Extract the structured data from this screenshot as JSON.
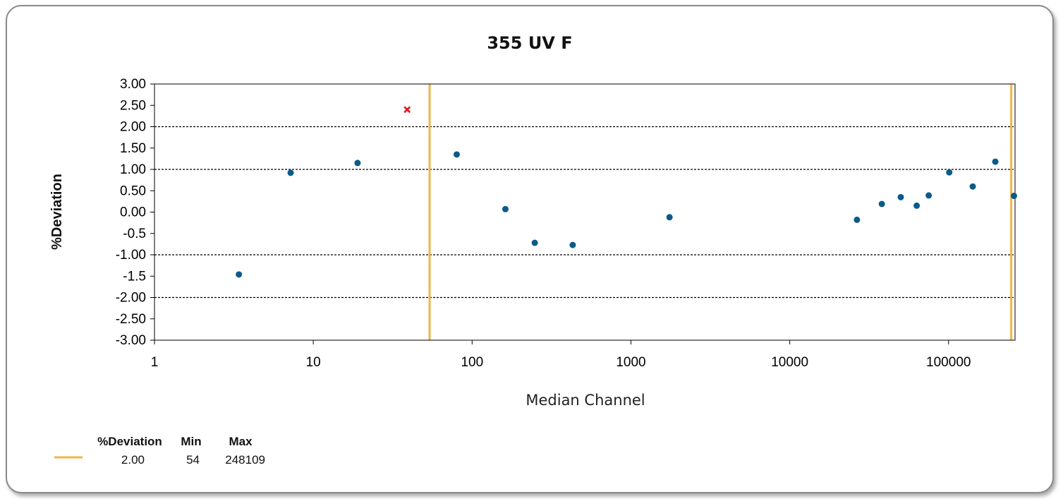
{
  "chart_data": {
    "type": "scatter",
    "title": "355 UV F",
    "xlabel": "Median Channel",
    "ylabel": "%Deviation",
    "x_scale": "log",
    "xlim": [
      1,
      262144
    ],
    "ylim": [
      -3.0,
      3.0
    ],
    "x_ticks": [
      "1",
      "10",
      "100",
      "1000",
      "10000",
      "100000"
    ],
    "y_ticks": [
      "3.00",
      "2.50",
      "2.00",
      "1.50",
      "1.00",
      "0.50",
      "0.00",
      "-0.5",
      "-1.00",
      "-1.5",
      "-2.00",
      "-2.50",
      "-3.00"
    ],
    "dashed_reference_lines": [
      2.0,
      1.0,
      -1.0,
      -2.0
    ],
    "range_lines": {
      "min": 54,
      "max": 248109,
      "color": "#f0b44a"
    },
    "point_color": "#0a5b8a",
    "outlier_color": "#e8141e",
    "points": [
      {
        "x": 3.4,
        "y": -1.46
      },
      {
        "x": 7.2,
        "y": 0.92
      },
      {
        "x": 19,
        "y": 1.15
      },
      {
        "x": 80,
        "y": 1.35
      },
      {
        "x": 162,
        "y": 0.07
      },
      {
        "x": 248,
        "y": -0.72
      },
      {
        "x": 430,
        "y": -0.77
      },
      {
        "x": 1750,
        "y": -0.12
      },
      {
        "x": 26500,
        "y": -0.18
      },
      {
        "x": 38000,
        "y": 0.19
      },
      {
        "x": 50000,
        "y": 0.35
      },
      {
        "x": 63000,
        "y": 0.15
      },
      {
        "x": 75000,
        "y": 0.39
      },
      {
        "x": 101000,
        "y": 0.93
      },
      {
        "x": 142000,
        "y": 0.6
      },
      {
        "x": 197000,
        "y": 1.18
      },
      {
        "x": 258000,
        "y": 0.38
      }
    ],
    "outliers": [
      {
        "x": 39,
        "y": 2.4
      }
    ],
    "legend": {
      "headers": [
        "%Deviation",
        "Min",
        "Max"
      ],
      "values": [
        "2.00",
        "54",
        "248109"
      ],
      "placement": "bottom-left"
    }
  }
}
